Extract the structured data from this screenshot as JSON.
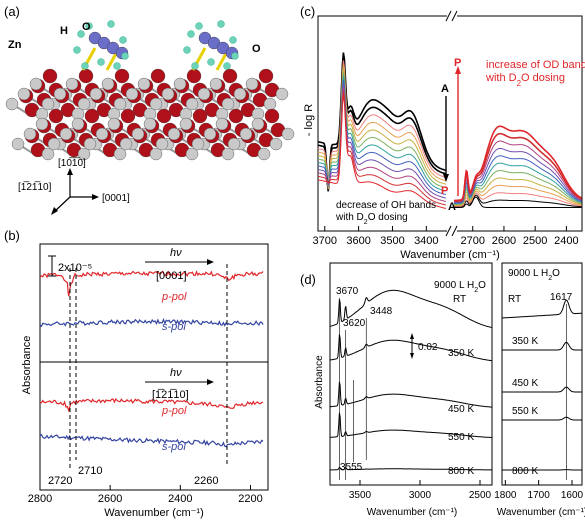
{
  "panels": {
    "a": {
      "label": "(a)",
      "atom_labels": {
        "zn": "Zn",
        "h": "H",
        "o_top": "O",
        "o_right": "O"
      },
      "axes": {
        "vertical": "[10̅1̅0]",
        "diagonal": "[1̅21̅10]",
        "horizontal": "[0001]"
      },
      "colors": {
        "zn": "#c9c9c9",
        "o": "#b0101a",
        "h": "#6cd2b8",
        "surface_o": "#6a6ec8",
        "bond": "#e8d000"
      }
    },
    "b": {
      "label": "(b)"
    },
    "c": {
      "label": "(c)"
    },
    "d": {
      "label": "(d)"
    }
  },
  "chart_data": [
    {
      "panel": "b",
      "type": "line",
      "ylabel": "Absorbance",
      "xlabel": "Wavenumber (cm⁻¹)",
      "xlim": [
        2800,
        2150
      ],
      "xticks": [
        "2800",
        "2600",
        "2400",
        "2200"
      ],
      "scale_bar": "2x10⁻⁵",
      "subpanels": [
        {
          "light": "hν",
          "direction": "[0001]",
          "series": [
            {
              "name": "p-pol",
              "color": "#e0262a",
              "x": [
                2800,
                2760,
                2735,
                2722,
                2718,
                2712,
                2700,
                2650,
                2600,
                2550,
                2500,
                2450,
                2400,
                2350,
                2300,
                2262,
                2240,
                2200,
                2160
              ],
              "y": [
                0.8,
                0.95,
                0.9,
                0.1,
                -1.0,
                0.2,
                0.85,
                1.0,
                1.0,
                1.05,
                1.0,
                1.05,
                1.0,
                1.05,
                1.0,
                0.55,
                0.9,
                1.0,
                1.05
              ]
            },
            {
              "name": "s-pol",
              "color": "#3344a0",
              "x": [
                2800,
                2700,
                2600,
                2500,
                2400,
                2300,
                2262,
                2240,
                2200,
                2160
              ],
              "y": [
                -0.2,
                -0.1,
                0.0,
                0.05,
                0.0,
                -0.05,
                -0.25,
                -0.05,
                -0.1,
                -0.15
              ]
            }
          ]
        },
        {
          "light": "hν",
          "direction": "[1̅21̅10]",
          "series": [
            {
              "name": "p-pol",
              "color": "#e0262a",
              "x": [
                2800,
                2760,
                2730,
                2718,
                2712,
                2700,
                2650,
                2600,
                2500,
                2400,
                2350,
                2300,
                2262,
                2240,
                2200,
                2160
              ],
              "y": [
                0.8,
                0.85,
                0.75,
                0.2,
                0.7,
                0.85,
                0.9,
                0.95,
                0.9,
                0.8,
                0.7,
                0.6,
                0.3,
                0.55,
                0.75,
                0.85
              ]
            },
            {
              "name": "s-pol",
              "color": "#3344a0",
              "x": [
                2800,
                2700,
                2600,
                2500,
                2400,
                2300,
                2262,
                2240,
                2200,
                2160
              ],
              "y": [
                0.3,
                0.2,
                0.05,
                -0.05,
                -0.15,
                -0.25,
                -0.45,
                -0.3,
                -0.2,
                -0.1
              ]
            }
          ]
        }
      ],
      "annotations": [
        "2720",
        "2710",
        "2260"
      ]
    },
    {
      "panel": "c",
      "type": "line",
      "ylabel": "- log R",
      "xlabel": "Wavenumber (cm⁻¹)",
      "xticks_left": [
        "3700",
        "3600",
        "3500",
        "3400"
      ],
      "xticks_right": [
        "2700",
        "2600",
        "2500",
        "2400"
      ],
      "xlim_left": [
        3720,
        3330
      ],
      "xlim_right": [
        2760,
        2350
      ],
      "annotations": {
        "top_arrow": "P",
        "bottom_arrow": "A",
        "od_text": "increase of OD bands with D₂O dosing",
        "oh_text": "decrease of OH bands with D₂O dosing",
        "left_P": "P",
        "left_A": "A",
        "right_P": "P",
        "right_A": "A"
      },
      "series_colors": [
        "#000000",
        "#000000",
        "#f08080",
        "#e8a050",
        "#c8b040",
        "#7ab060",
        "#30a0a0",
        "#4060c0",
        "#7050b0",
        "#b04080",
        "#d03030",
        "#e0262a"
      ],
      "series_count": 12
    },
    {
      "panel": "d",
      "type": "line",
      "ylabel": "Absorbance",
      "xlabel": "Wavenumber (cm⁻¹)",
      "xticks_left": [
        "3500",
        "3000",
        "2500"
      ],
      "xticks_right": [
        "1800",
        "1700",
        "1600"
      ],
      "xlim_left": [
        3750,
        2400
      ],
      "xlim_right": [
        1810,
        1570
      ],
      "scale": "0.02",
      "dose_left": "9000 L H₂O",
      "rt_left": "RT",
      "dose_right": "9000 L H₂O",
      "rt_right": "RT",
      "peak_labels": [
        "3670",
        "3620",
        "3448",
        "3555",
        "1617"
      ],
      "series": [
        {
          "name": "RT",
          "offset": 4
        },
        {
          "name": "350 K",
          "offset": 3
        },
        {
          "name": "450 K",
          "offset": 2
        },
        {
          "name": "550 K",
          "offset": 1
        },
        {
          "name": "800 K",
          "offset": 0
        }
      ]
    }
  ]
}
